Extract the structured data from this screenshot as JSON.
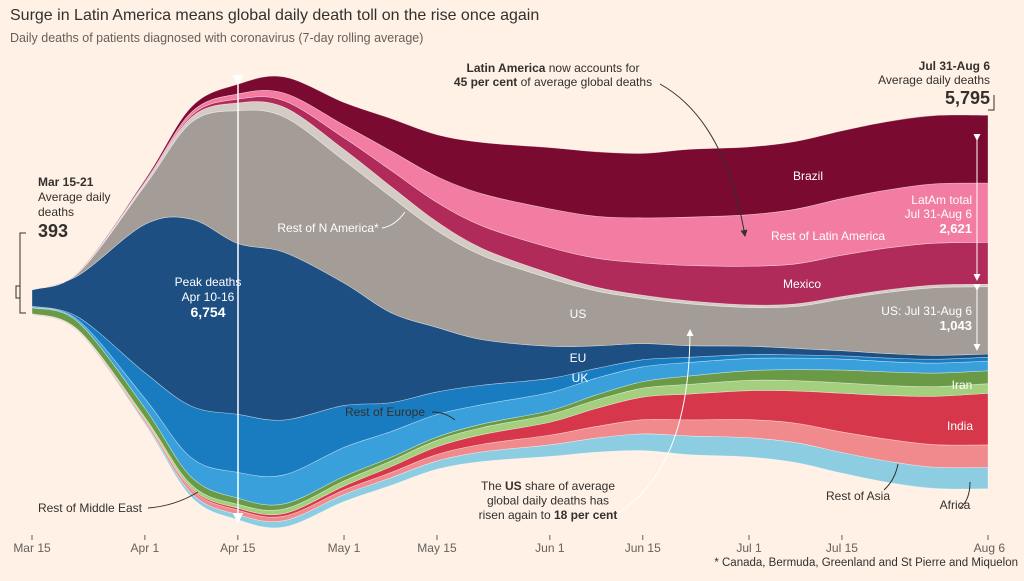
{
  "chart_data": {
    "type": "streamgraph",
    "title": "Surge in Latin America means global daily death toll on the rise once again",
    "subtitle": "Daily deaths of patients diagnosed with coronavirus (7-day rolling average)",
    "x": [
      "Mar 15",
      "Mar 22",
      "Apr 1",
      "Apr 8",
      "Apr 15",
      "Apr 22",
      "May 1",
      "May 8",
      "May 15",
      "May 22",
      "Jun 1",
      "Jun 8",
      "Jun 15",
      "Jun 22",
      "Jul 1",
      "Jul 8",
      "Jul 15",
      "Jul 22",
      "Jul 29",
      "Aug 6"
    ],
    "xlim": [
      "Mar 15",
      "Aug 6"
    ],
    "xticks": [
      "Mar 15",
      "Apr 1",
      "Apr 15",
      "May 1",
      "May 15",
      "Jun 1",
      "Jun 15",
      "Jul 1",
      "Jul 15",
      "Aug 6"
    ],
    "series": [
      {
        "name": "Africa",
        "color": "#8ccde2",
        "values": [
          2,
          5,
          30,
          60,
          80,
          100,
          110,
          120,
          130,
          150,
          180,
          220,
          260,
          290,
          300,
          310,
          320,
          330,
          330,
          331
        ]
      },
      {
        "name": "Rest of Asia",
        "color": "#f08a8c",
        "values": [
          10,
          15,
          40,
          60,
          70,
          70,
          70,
          80,
          100,
          120,
          150,
          180,
          220,
          250,
          280,
          300,
          320,
          340,
          350,
          350
        ]
      },
      {
        "name": "India",
        "color": "#d7374a",
        "values": [
          1,
          2,
          8,
          20,
          30,
          40,
          60,
          90,
          120,
          150,
          200,
          280,
          350,
          400,
          450,
          500,
          600,
          680,
          750,
          800
        ]
      },
      {
        "name": "Rest of Middle East",
        "color": "#a3cf7f",
        "values": [
          5,
          10,
          30,
          50,
          60,
          70,
          80,
          90,
          100,
          110,
          120,
          130,
          140,
          150,
          160,
          160,
          160,
          155,
          150,
          150
        ]
      },
      {
        "name": "Iran",
        "color": "#6b9a47",
        "values": [
          90,
          120,
          140,
          120,
          95,
          80,
          70,
          55,
          50,
          55,
          60,
          80,
          100,
          130,
          150,
          170,
          200,
          210,
          210,
          200
        ]
      },
      {
        "name": "Rest of Europe",
        "color": "#3aa0dc",
        "values": [
          10,
          30,
          150,
          300,
          400,
          450,
          450,
          400,
          350,
          300,
          280,
          260,
          230,
          210,
          190,
          180,
          170,
          160,
          155,
          150
        ]
      },
      {
        "name": "UK",
        "color": "#1a7cc0",
        "values": [
          15,
          50,
          400,
          800,
          900,
          850,
          650,
          450,
          350,
          300,
          220,
          150,
          110,
          80,
          60,
          50,
          50,
          55,
          60,
          60
        ]
      },
      {
        "name": "EU",
        "color": "#1d4f82",
        "values": [
          250,
          650,
          2300,
          2900,
          2650,
          2600,
          1900,
          1400,
          1000,
          700,
          500,
          350,
          250,
          180,
          130,
          100,
          80,
          70,
          60,
          50
        ]
      },
      {
        "name": "US",
        "color": "#a39c97",
        "values": [
          7,
          40,
          600,
          1500,
          2060,
          2100,
          1900,
          1800,
          1500,
          1300,
          1050,
          850,
          700,
          650,
          600,
          650,
          800,
          950,
          1050,
          1043
        ]
      },
      {
        "name": "Rest of N America*",
        "color": "#d4cbc4",
        "values": [
          1,
          5,
          30,
          80,
          120,
          150,
          170,
          160,
          140,
          110,
          80,
          60,
          50,
          45,
          40,
          40,
          40,
          40,
          40,
          40
        ]
      },
      {
        "name": "Mexico",
        "color": "#b02a5a",
        "values": [
          0,
          1,
          10,
          30,
          60,
          100,
          180,
          250,
          300,
          350,
          400,
          450,
          500,
          550,
          600,
          620,
          640,
          650,
          650,
          649
        ]
      },
      {
        "name": "Rest of Latin America",
        "color": "#f27ca2",
        "values": [
          1,
          3,
          20,
          50,
          80,
          120,
          200,
          300,
          400,
          500,
          600,
          650,
          700,
          750,
          800,
          850,
          880,
          900,
          920,
          919
        ]
      },
      {
        "name": "Brazil",
        "color": "#7b0a31",
        "values": [
          1,
          5,
          30,
          80,
          150,
          250,
          350,
          500,
          650,
          800,
          950,
          1000,
          1000,
          1050,
          1050,
          1050,
          1050,
          1060,
          1060,
          1053
        ]
      }
    ],
    "annotations": [
      {
        "lines": [
          [
            {
              "text": "Mar 15-21",
              "bold": true
            }
          ],
          [
            {
              "text": "Average daily"
            }
          ],
          [
            {
              "text": "deaths"
            }
          ]
        ],
        "figure": 393
      },
      {
        "lines": [
          [
            {
              "text": "Peak deaths"
            }
          ],
          [
            {
              "text": "Apr 10-16"
            }
          ]
        ],
        "figure": {
          "value": 6754,
          "label": "6,754"
        }
      },
      {
        "lines": [
          [
            {
              "text": "Latin America",
              "bold": true
            },
            {
              "text": " now accounts for"
            }
          ],
          [
            {
              "text": "45 per cent",
              "bold": true
            },
            {
              "text": " of average global deaths"
            }
          ]
        ]
      },
      {
        "lines": [
          [
            {
              "text": "Jul 31-Aug 6",
              "bold": true
            }
          ],
          [
            {
              "text": "Average daily deaths"
            }
          ]
        ],
        "figure": {
          "value": 5795,
          "label": "5,795"
        }
      },
      {
        "lines": [
          [
            {
              "text": "LatAm total"
            }
          ],
          [
            {
              "text": "Jul 31-Aug 6"
            }
          ]
        ],
        "figure": {
          "value": 2621,
          "label": "2,621"
        }
      },
      {
        "lines": [
          [
            {
              "text": "US: Jul 31-Aug 6"
            }
          ]
        ],
        "figure": {
          "value": 1043,
          "label": "1,043"
        }
      },
      {
        "lines": [
          [
            {
              "text": "The "
            },
            {
              "text": "US",
              "bold": true
            },
            {
              "text": " share of average"
            }
          ],
          [
            {
              "text": "global daily deaths has"
            }
          ],
          [
            {
              "text": "risen again to "
            },
            {
              "text": "18 per cent",
              "bold": true
            }
          ]
        ]
      }
    ],
    "footnote": "* Canada, Bermuda, Greenland and St Pierre and Miquelon"
  }
}
